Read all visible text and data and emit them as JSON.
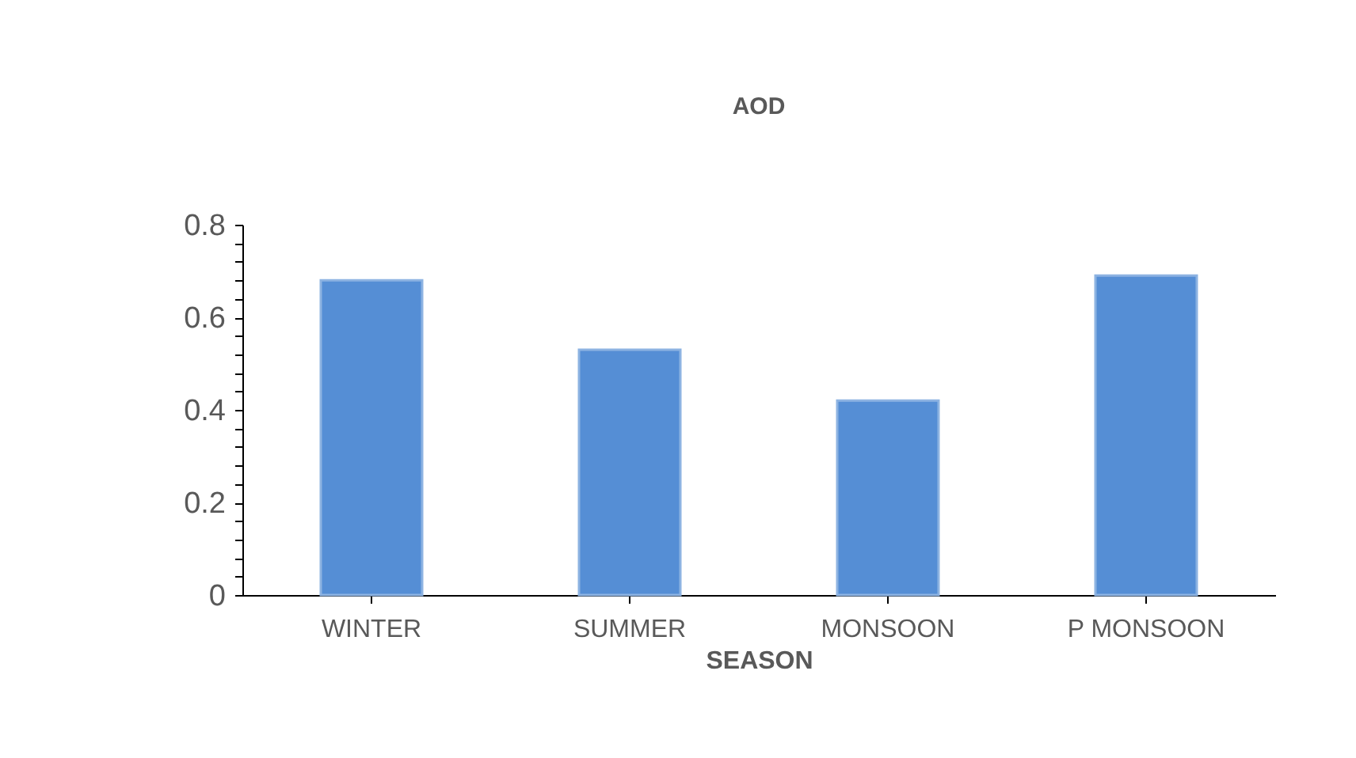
{
  "chart_data": {
    "type": "bar",
    "title": "AOD",
    "xlabel": "SEASON",
    "categories": [
      "WINTER",
      "SUMMER",
      "MONSOON",
      "P MONSOON"
    ],
    "values": [
      0.68,
      0.53,
      0.42,
      0.69
    ],
    "color": "#558ed5",
    "ylim": [
      0,
      0.8
    ],
    "yticks": [
      0,
      {
        "value": 0.04,
        "label": null
      },
      {
        "value": 0.08,
        "label": null
      },
      {
        "value": 0.12,
        "label": null
      },
      {
        "value": 0.16,
        "label": null
      },
      0.2,
      {
        "value": 0.24,
        "label": null
      },
      {
        "value": 0.28,
        "label": null
      },
      {
        "value": 0.32,
        "label": null
      },
      {
        "value": 0.36,
        "label": null
      },
      0.4,
      {
        "value": 0.44,
        "label": null
      },
      {
        "value": 0.48,
        "label": null
      },
      {
        "value": 0.52,
        "label": null
      },
      {
        "value": 0.56,
        "label": null
      },
      0.6,
      {
        "value": 0.64,
        "label": null
      },
      {
        "value": 0.68,
        "label": null
      },
      {
        "value": 0.72,
        "label": null
      },
      {
        "value": 0.76,
        "label": null
      },
      0.8
    ],
    "grid": false
  }
}
